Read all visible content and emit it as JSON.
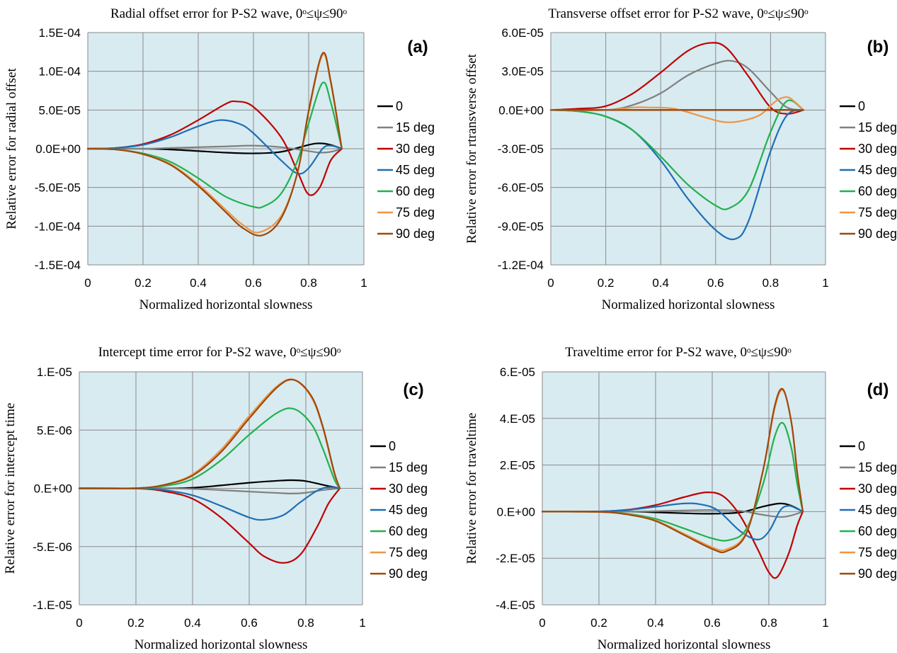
{
  "chart_data": [
    {
      "type": "line",
      "title": "Radial offset error for P-S2 wave, 0ᵒ≤ψ≤90ᵒ",
      "panel_label": "(a)",
      "xlabel": "Normalized horizontal slowness",
      "ylabel": "Relative error for radial offset",
      "xlim": [
        0,
        1
      ],
      "ylim": [
        -0.00015,
        0.00015
      ],
      "xticks": [
        0,
        0.2,
        0.4,
        0.6,
        0.8,
        1
      ],
      "xtick_labels": [
        "0",
        "0.2",
        "0.4",
        "0.6",
        "0.8",
        "1"
      ],
      "yticks": [
        0.00015,
        0.0001,
        5e-05,
        0,
        -5e-05,
        -0.0001,
        -0.00015
      ],
      "ytick_labels": [
        "1.5E-04",
        "1.0E-04",
        "5.0E-05",
        "0.0E+00",
        "-5.0E-05",
        "-1.0E-04",
        "-1.5E-04"
      ],
      "grid": true,
      "legend_position": "right",
      "series": [
        {
          "name": "0",
          "x": [
            0,
            0.2,
            0.3,
            0.4,
            0.5,
            0.6,
            0.7,
            0.8,
            0.84,
            0.88,
            0.92
          ],
          "y": [
            0,
            0,
            -1e-06,
            -3e-06,
            -5e-06,
            -6e-06,
            -4e-06,
            5e-06,
            7e-06,
            5e-06,
            0
          ]
        },
        {
          "name": "15 deg",
          "x": [
            0,
            0.2,
            0.3,
            0.4,
            0.5,
            0.6,
            0.7,
            0.8,
            0.84,
            0.88,
            0.92
          ],
          "y": [
            0,
            0,
            1e-06,
            2e-06,
            3e-06,
            4e-06,
            2e-06,
            -3e-06,
            -5e-06,
            -4e-06,
            0
          ]
        },
        {
          "name": "30 deg",
          "x": [
            0,
            0.1,
            0.2,
            0.3,
            0.4,
            0.5,
            0.54,
            0.6,
            0.7,
            0.76,
            0.8,
            0.84,
            0.88,
            0.92
          ],
          "y": [
            0,
            1e-06,
            6e-06,
            1.8e-05,
            3.7e-05,
            5.8e-05,
            6.1e-05,
            5.4e-05,
            1.5e-05,
            -3e-05,
            -5.9e-05,
            -5e-05,
            -1.5e-05,
            0
          ]
        },
        {
          "name": "45 deg",
          "x": [
            0,
            0.1,
            0.2,
            0.3,
            0.4,
            0.48,
            0.55,
            0.6,
            0.7,
            0.76,
            0.8,
            0.85,
            0.88,
            0.92
          ],
          "y": [
            0,
            1e-06,
            5e-06,
            1.5e-05,
            2.9e-05,
            3.7e-05,
            3.2e-05,
            2e-05,
            -1.5e-05,
            -3.2e-05,
            -2.5e-05,
            0,
            4e-06,
            0
          ]
        },
        {
          "name": "60 deg",
          "x": [
            0,
            0.1,
            0.2,
            0.3,
            0.4,
            0.5,
            0.6,
            0.64,
            0.7,
            0.76,
            0.8,
            0.85,
            0.88,
            0.92
          ],
          "y": [
            0,
            -1e-06,
            -6e-06,
            -1.7e-05,
            -3.8e-05,
            -6.2e-05,
            -7.5e-05,
            -7.4e-05,
            -5.8e-05,
            -1.5e-05,
            3.3e-05,
            8.5e-05,
            6e-05,
            0
          ]
        },
        {
          "name": "75 deg",
          "x": [
            0,
            0.1,
            0.2,
            0.3,
            0.4,
            0.5,
            0.56,
            0.62,
            0.7,
            0.76,
            0.8,
            0.85,
            0.88,
            0.92
          ],
          "y": [
            0,
            -1e-06,
            -7e-06,
            -2e-05,
            -4.6e-05,
            -7.9e-05,
            -9.8e-05,
            -0.000108,
            -8.7e-05,
            -3e-05,
            4.7e-05,
            0.000121,
            8.5e-05,
            0
          ]
        },
        {
          "name": "90 deg",
          "x": [
            0,
            0.1,
            0.2,
            0.3,
            0.4,
            0.5,
            0.56,
            0.63,
            0.7,
            0.76,
            0.8,
            0.85,
            0.88,
            0.92
          ],
          "y": [
            0,
            -1e-06,
            -7e-06,
            -2.1e-05,
            -4.8e-05,
            -8.2e-05,
            -0.000102,
            -0.000112,
            -9e-05,
            -3e-05,
            4.9e-05,
            0.000123,
            8.7e-05,
            0
          ]
        }
      ]
    },
    {
      "type": "line",
      "title": "Transverse offset error for P-S2 wave, 0ᵒ≤ψ≤90ᵒ",
      "panel_label": "(b)",
      "xlabel": "Normalized horizontal slowness",
      "ylabel": "Relative error for rtransverse offset",
      "xlim": [
        0,
        1
      ],
      "ylim": [
        -0.00012,
        6e-05
      ],
      "xticks": [
        0,
        0.2,
        0.4,
        0.6,
        0.8,
        1
      ],
      "xtick_labels": [
        "0",
        "0.2",
        "0.4",
        "0.6",
        "0.8",
        "1"
      ],
      "yticks": [
        6e-05,
        3e-05,
        0,
        -3e-05,
        -6e-05,
        -9e-05,
        -0.00012
      ],
      "ytick_labels": [
        "6.0E-05",
        "3.0E-05",
        "0.0E+00",
        "-3.0E-05",
        "-6.0E-05",
        "-9.0E-05",
        "-1.2E-04"
      ],
      "grid": true,
      "legend_position": "right",
      "series": [
        {
          "name": "0",
          "x": [
            0,
            0.5,
            0.92
          ],
          "y": [
            0,
            0,
            0
          ]
        },
        {
          "name": "15 deg",
          "x": [
            0,
            0.2,
            0.3,
            0.4,
            0.5,
            0.6,
            0.66,
            0.72,
            0.8,
            0.86,
            0.92
          ],
          "y": [
            0,
            0,
            4e-06,
            1.3e-05,
            2.7e-05,
            3.6e-05,
            3.8e-05,
            3.2e-05,
            1.4e-05,
            2e-06,
            0
          ]
        },
        {
          "name": "30 deg",
          "x": [
            0,
            0.1,
            0.2,
            0.3,
            0.4,
            0.5,
            0.58,
            0.64,
            0.72,
            0.8,
            0.86,
            0.92
          ],
          "y": [
            0,
            1e-06,
            3e-06,
            1.3e-05,
            2.9e-05,
            4.6e-05,
            5.2e-05,
            4.8e-05,
            2.6e-05,
            2e-06,
            -3e-06,
            0
          ]
        },
        {
          "name": "45 deg",
          "x": [
            0,
            0.1,
            0.2,
            0.3,
            0.4,
            0.5,
            0.6,
            0.67,
            0.72,
            0.8,
            0.86,
            0.92
          ],
          "y": [
            0,
            -1e-06,
            -5e-06,
            -1.6e-05,
            -3.9e-05,
            -6.9e-05,
            -9.3e-05,
            -0.0001,
            -8.6e-05,
            -3.2e-05,
            -4e-06,
            0
          ]
        },
        {
          "name": "60 deg",
          "x": [
            0,
            0.1,
            0.2,
            0.3,
            0.4,
            0.5,
            0.6,
            0.65,
            0.72,
            0.8,
            0.86,
            0.92
          ],
          "y": [
            0,
            -1e-06,
            -5e-06,
            -1.6e-05,
            -3.6e-05,
            -5.8e-05,
            -7.4e-05,
            -7.6e-05,
            -6.2e-05,
            -1.7e-05,
            7e-06,
            0
          ]
        },
        {
          "name": "75 deg",
          "x": [
            0,
            0.2,
            0.3,
            0.36,
            0.45,
            0.55,
            0.62,
            0.68,
            0.76,
            0.82,
            0.86,
            0.89,
            0.92
          ],
          "y": [
            0,
            0,
            2e-06,
            2e-06,
            1e-06,
            -5e-06,
            -9e-06,
            -9e-06,
            -4e-06,
            7e-06,
            1e-05,
            6e-06,
            0
          ]
        },
        {
          "name": "90 deg",
          "x": [
            0,
            0.5,
            0.92
          ],
          "y": [
            0,
            0,
            0
          ]
        }
      ]
    },
    {
      "type": "line",
      "title": "Intercept time error for P-S2 wave, 0ᵒ≤ψ≤90ᵒ",
      "panel_label": "(c)",
      "xlabel": "Normalized horizontal slowness",
      "ylabel": "Relative error for intercept time",
      "xlim": [
        0,
        1
      ],
      "ylim": [
        -1e-05,
        1e-05
      ],
      "xticks": [
        0,
        0.2,
        0.4,
        0.6,
        0.8,
        1
      ],
      "xtick_labels": [
        "0",
        "0.2",
        "0.4",
        "0.6",
        "0.8",
        "1"
      ],
      "yticks": [
        1e-05,
        5e-06,
        0,
        -5e-06,
        -1e-05
      ],
      "ytick_labels": [
        "1.E-05",
        "5.E-06",
        "0.E+00",
        "-5.E-06",
        "-1.E-05"
      ],
      "grid": true,
      "legend_position": "right",
      "series": [
        {
          "name": "0",
          "x": [
            0,
            0.3,
            0.4,
            0.5,
            0.6,
            0.7,
            0.75,
            0.8,
            0.86,
            0.92
          ],
          "y": [
            0,
            0,
            5e-08,
            2.5e-07,
            4.8e-07,
            6.5e-07,
            7e-07,
            6.2e-07,
            3e-07,
            0
          ]
        },
        {
          "name": "15 deg",
          "x": [
            0,
            0.3,
            0.4,
            0.5,
            0.6,
            0.7,
            0.75,
            0.8,
            0.86,
            0.92
          ],
          "y": [
            0,
            0,
            -5e-08,
            -1.5e-07,
            -2.8e-07,
            -4e-07,
            -4.5e-07,
            -3.8e-07,
            -1.5e-07,
            0
          ]
        },
        {
          "name": "30 deg",
          "x": [
            0,
            0.2,
            0.3,
            0.4,
            0.5,
            0.6,
            0.65,
            0.72,
            0.78,
            0.84,
            0.88,
            0.92
          ],
          "y": [
            0,
            -2e-08,
            -2.5e-07,
            -9e-07,
            -2.5e-06,
            -4.7e-06,
            -5.8e-06,
            -6.4e-06,
            -5.7e-06,
            -3.3e-06,
            -1.3e-06,
            0
          ]
        },
        {
          "name": "45 deg",
          "x": [
            0,
            0.2,
            0.3,
            0.4,
            0.5,
            0.6,
            0.65,
            0.72,
            0.78,
            0.84,
            0.88,
            0.92
          ],
          "y": [
            0,
            -1e-08,
            -1.5e-07,
            -6e-07,
            -1.5e-06,
            -2.5e-06,
            -2.7e-06,
            -2.3e-06,
            -1.2e-06,
            -2e-07,
            1e-07,
            0
          ]
        },
        {
          "name": "60 deg",
          "x": [
            0,
            0.2,
            0.3,
            0.4,
            0.5,
            0.6,
            0.7,
            0.76,
            0.82,
            0.86,
            0.9,
            0.92
          ],
          "y": [
            0,
            1e-08,
            2e-07,
            8e-07,
            2.4e-06,
            4.6e-06,
            6.5e-06,
            6.8e-06,
            5.5e-06,
            3.4e-06,
            8e-07,
            0
          ]
        },
        {
          "name": "75 deg",
          "x": [
            0,
            0.2,
            0.3,
            0.4,
            0.5,
            0.6,
            0.7,
            0.76,
            0.82,
            0.86,
            0.9,
            0.92
          ],
          "y": [
            0,
            1e-08,
            3e-07,
            1.2e-06,
            3.3e-06,
            6.2e-06,
            8.8e-06,
            9.3e-06,
            7.8e-06,
            5.2e-06,
            1.3e-06,
            0
          ]
        },
        {
          "name": "90 deg",
          "x": [
            0,
            0.2,
            0.3,
            0.4,
            0.5,
            0.6,
            0.7,
            0.76,
            0.82,
            0.86,
            0.9,
            0.92
          ],
          "y": [
            0,
            1e-08,
            3e-07,
            1.1e-06,
            3.1e-06,
            6e-06,
            8.7e-06,
            9.3e-06,
            7.9e-06,
            5.3e-06,
            1.4e-06,
            0
          ]
        }
      ]
    },
    {
      "type": "line",
      "title": "Traveltime error for P-S2 wave, 0ᵒ≤ψ≤90ᵒ",
      "panel_label": "(d)",
      "xlabel": "Normalized horizontal slowness",
      "ylabel": "Relative error for traveltime",
      "xlim": [
        0,
        1
      ],
      "ylim": [
        -4e-05,
        6e-05
      ],
      "xticks": [
        0,
        0.2,
        0.4,
        0.6,
        0.8,
        1
      ],
      "xtick_labels": [
        "0",
        "0.2",
        "0.4",
        "0.6",
        "0.8",
        "1"
      ],
      "yticks": [
        6e-05,
        4e-05,
        2e-05,
        0,
        -2e-05,
        -4e-05
      ],
      "ytick_labels": [
        "6.E-05",
        "4.E-05",
        "2.E-05",
        "0.E+00",
        "-2.E-05",
        "-4.E-05"
      ],
      "grid": true,
      "legend_position": "right",
      "series": [
        {
          "name": "0",
          "x": [
            0,
            0.3,
            0.4,
            0.5,
            0.6,
            0.7,
            0.78,
            0.84,
            0.88,
            0.92
          ],
          "y": [
            0,
            0,
            -3e-07,
            -7e-07,
            -9e-07,
            -3e-07,
            2.2e-06,
            3.5e-06,
            2.5e-06,
            0
          ]
        },
        {
          "name": "15 deg",
          "x": [
            0,
            0.3,
            0.4,
            0.5,
            0.6,
            0.7,
            0.78,
            0.84,
            0.88,
            0.92
          ],
          "y": [
            0,
            0,
            2e-07,
            5e-07,
            7e-07,
            3e-07,
            -1.4e-06,
            -2.3e-06,
            -1.6e-06,
            0
          ]
        },
        {
          "name": "30 deg",
          "x": [
            0,
            0.2,
            0.3,
            0.4,
            0.5,
            0.58,
            0.64,
            0.7,
            0.76,
            0.8,
            0.83,
            0.87,
            0.9,
            0.92
          ],
          "y": [
            0,
            1e-07,
            8e-07,
            2.8e-06,
            6.2e-06,
            8.3e-06,
            6.5e-06,
            -2e-06,
            -1.6e-05,
            -2.6e-05,
            -2.8e-05,
            -1.8e-05,
            -6e-06,
            0
          ]
        },
        {
          "name": "45 deg",
          "x": [
            0,
            0.2,
            0.3,
            0.4,
            0.5,
            0.56,
            0.62,
            0.7,
            0.76,
            0.8,
            0.84,
            0.87,
            0.9,
            0.92
          ],
          "y": [
            0,
            1e-07,
            7e-07,
            2.1e-06,
            3.5e-06,
            3.1e-06,
            5e-07,
            -8.5e-06,
            -1.2e-05,
            -8.5e-06,
            5e-07,
            2.5e-06,
            1.2e-06,
            0
          ]
        },
        {
          "name": "60 deg",
          "x": [
            0,
            0.2,
            0.3,
            0.4,
            0.5,
            0.6,
            0.66,
            0.72,
            0.78,
            0.82,
            0.85,
            0.88,
            0.9,
            0.92
          ],
          "y": [
            0,
            -1e-07,
            -9e-07,
            -3.1e-06,
            -7.2e-06,
            -1.15e-05,
            -1.22e-05,
            -7.5e-06,
            1.2e-05,
            3.2e-05,
            3.8e-05,
            2.7e-05,
            1.2e-05,
            0
          ]
        },
        {
          "name": "75 deg",
          "x": [
            0,
            0.2,
            0.3,
            0.4,
            0.5,
            0.6,
            0.65,
            0.72,
            0.78,
            0.82,
            0.85,
            0.88,
            0.9,
            0.92
          ],
          "y": [
            0,
            -1e-07,
            -1.1e-06,
            -3.8e-06,
            -9.5e-06,
            -1.53e-05,
            -1.62e-05,
            -9e-06,
            1.8e-05,
            4.4e-05,
            5.2e-05,
            3.8e-05,
            1.7e-05,
            0
          ]
        },
        {
          "name": "90 deg",
          "x": [
            0,
            0.2,
            0.3,
            0.4,
            0.5,
            0.6,
            0.65,
            0.72,
            0.78,
            0.82,
            0.85,
            0.88,
            0.9,
            0.92
          ],
          "y": [
            0,
            -1e-07,
            -1.2e-06,
            -4e-06,
            -1e-05,
            -1.6e-05,
            -1.7e-05,
            -9.5e-06,
            1.8e-05,
            4.5e-05,
            5.25e-05,
            3.8e-05,
            1.7e-05,
            0
          ]
        }
      ]
    }
  ],
  "colors": {
    "plot_background": "#d8ebf1",
    "grid": "#8a8a8a",
    "series": [
      "#000000",
      "#808080",
      "#c00000",
      "#1f6fb5",
      "#22b14c",
      "#ee9547",
      "#9c4a0c"
    ]
  }
}
